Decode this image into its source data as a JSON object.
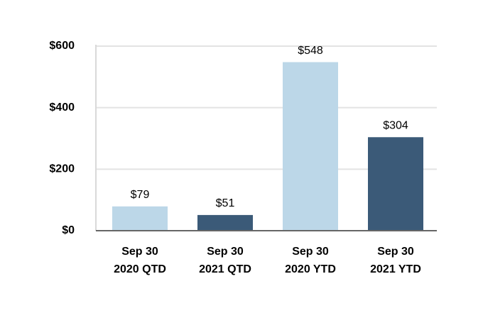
{
  "chart_data": {
    "type": "bar",
    "categories": [
      [
        "Sep 30",
        "2020 QTD"
      ],
      [
        "Sep 30",
        "2021 QTD"
      ],
      [
        "Sep 30",
        "2020 YTD"
      ],
      [
        "Sep 30",
        "2021 YTD"
      ]
    ],
    "values": [
      79,
      51,
      548,
      304
    ],
    "value_labels": [
      "$79",
      "$51",
      "$548",
      "$304"
    ],
    "colors": [
      "#bcd7e8",
      "#3b5a78",
      "#bcd7e8",
      "#3b5a78"
    ],
    "ylim": [
      0,
      600
    ],
    "yticks": [
      {
        "value": 0,
        "label": "$0"
      },
      {
        "value": 200,
        "label": "$200"
      },
      {
        "value": 400,
        "label": "$400"
      },
      {
        "value": 600,
        "label": "$600"
      }
    ],
    "grid": true
  }
}
